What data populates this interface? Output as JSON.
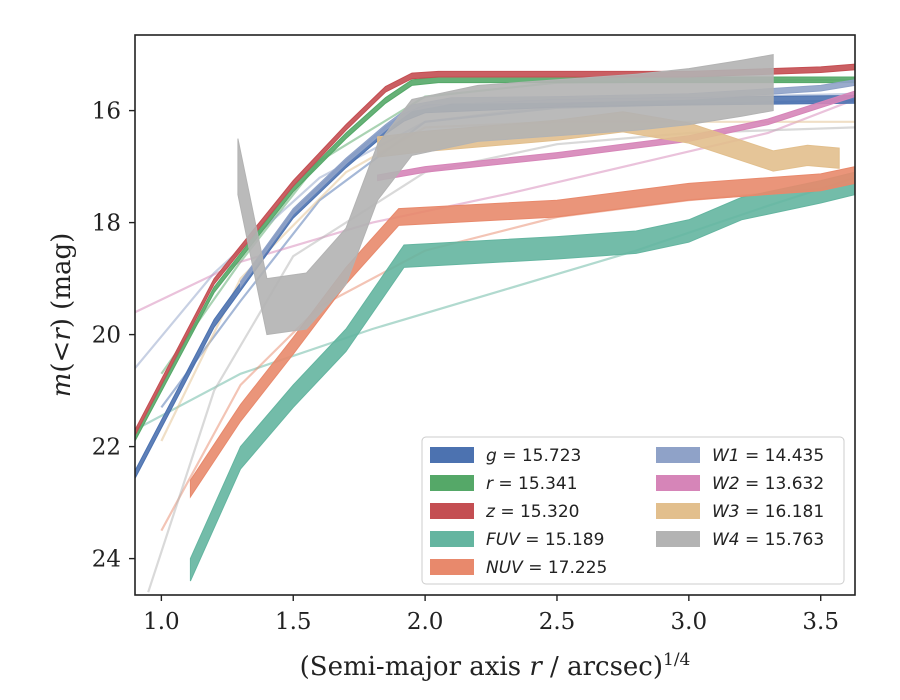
{
  "chart_data": {
    "type": "line",
    "xlabel": "(Semi-major axis r / arcsec)^{1/4}",
    "ylabel": "m(<r) (mag)",
    "xlim": [
      0.9,
      3.63
    ],
    "ylim": [
      24.65,
      14.65
    ],
    "y_inverted": true,
    "grid": false,
    "legend_placement": "lower-right",
    "xticks": [
      1.0,
      1.5,
      2.0,
      2.5,
      3.0,
      3.5
    ],
    "xtick_labels": [
      "1.0",
      "1.5",
      "2.0",
      "2.5",
      "3.0",
      "3.5"
    ],
    "yticks": [
      16,
      18,
      20,
      22,
      24
    ],
    "ytick_labels": [
      "16",
      "18",
      "20",
      "22",
      "24"
    ],
    "series": [
      {
        "name": "g",
        "legend_label": "g = 15.723",
        "color": "#4C72B0",
        "kind": "band",
        "x": [
          0.9,
          1.2,
          1.5,
          1.7,
          1.85,
          1.92,
          2.0,
          2.5,
          3.0,
          3.63
        ],
        "y": [
          22.5,
          19.8,
          17.85,
          16.95,
          16.35,
          16.12,
          15.97,
          15.87,
          15.83,
          15.8
        ],
        "band_halfwidth": 0.07
      },
      {
        "name": "r",
        "legend_label": "r = 15.341",
        "color": "#55A868",
        "kind": "band",
        "x": [
          0.9,
          1.2,
          1.5,
          1.7,
          1.85,
          1.95,
          2.05,
          3.63
        ],
        "y": [
          21.85,
          19.2,
          17.4,
          16.45,
          15.82,
          15.5,
          15.45,
          15.45
        ],
        "band_halfwidth": 0.05
      },
      {
        "name": "z",
        "legend_label": "z = 15.320",
        "color": "#C44E52",
        "kind": "band",
        "x": [
          0.9,
          1.2,
          1.5,
          1.7,
          1.85,
          1.95,
          2.05,
          3.0,
          3.5,
          3.63
        ],
        "y": [
          21.75,
          19.05,
          17.3,
          16.3,
          15.62,
          15.38,
          15.35,
          15.35,
          15.27,
          15.22
        ],
        "band_halfwidth": 0.05
      },
      {
        "name": "FUV",
        "legend_label": "FUV = 15.189",
        "color": "#64B5A0",
        "kind": "band",
        "x": [
          1.11,
          1.3,
          1.5,
          1.7,
          1.92,
          2.5,
          2.8,
          3.0,
          3.2,
          3.5,
          3.63
        ],
        "y": [
          24.2,
          22.2,
          21.1,
          20.1,
          18.6,
          18.45,
          18.35,
          18.15,
          17.75,
          17.45,
          17.3
        ],
        "band_halfwidth": 0.2
      },
      {
        "name": "NUV",
        "legend_label": "NUV = 17.225",
        "color": "#E8896C",
        "kind": "band",
        "x": [
          1.11,
          1.3,
          1.5,
          1.7,
          1.9,
          2.5,
          3.0,
          3.5,
          3.63
        ],
        "y": [
          22.75,
          21.4,
          20.2,
          18.95,
          17.9,
          17.75,
          17.45,
          17.28,
          17.15
        ],
        "band_halfwidth": 0.15
      },
      {
        "name": "W1",
        "legend_label": "W1 = 14.435",
        "color": "#8FA2C8",
        "kind": "band",
        "x": [
          1.3,
          1.5,
          1.7,
          1.85,
          1.95,
          2.1,
          2.5,
          3.0,
          3.5,
          3.63
        ],
        "y": [
          19.1,
          17.8,
          16.9,
          16.3,
          15.95,
          15.82,
          15.8,
          15.75,
          15.6,
          15.5
        ],
        "band_halfwidth": 0.05
      },
      {
        "name": "W2",
        "legend_label": "W2 = 13.632",
        "color": "#D685B8",
        "kind": "band",
        "x": [
          1.82,
          2.0,
          2.5,
          3.0,
          3.3,
          3.63
        ],
        "y": [
          17.2,
          17.05,
          16.8,
          16.5,
          16.2,
          15.7
        ],
        "band_halfwidth": 0.05
      },
      {
        "name": "W3",
        "legend_label": "W3 = 16.181",
        "color": "#E2BF8D",
        "kind": "band",
        "x": [
          1.82,
          2.0,
          2.5,
          2.75,
          3.0,
          3.32,
          3.45,
          3.57
        ],
        "y": [
          16.65,
          16.55,
          16.35,
          16.2,
          16.4,
          16.9,
          16.8,
          16.85
        ],
        "band_halfwidth": 0.18
      },
      {
        "name": "W4",
        "legend_label": "W4 = 15.763",
        "color": "#B3B3B3",
        "kind": "band",
        "x": [
          1.29,
          1.4,
          1.55,
          1.7,
          1.82,
          1.95,
          2.2,
          2.5,
          2.8,
          3.0,
          3.2,
          3.32
        ],
        "y": [
          17.0,
          19.5,
          19.4,
          18.6,
          17.1,
          16.3,
          16.05,
          15.95,
          15.85,
          15.75,
          15.6,
          15.5
        ],
        "band_halfwidth": 0.5
      }
    ],
    "model_curves": [
      {
        "name": "g",
        "color": "#4C72B0",
        "x": [
          1.0,
          1.3,
          1.6,
          2.0,
          2.5,
          3.0,
          3.5,
          3.63
        ],
        "y": [
          21.3,
          19.4,
          17.6,
          16.2,
          15.95,
          15.88,
          15.83,
          15.82
        ]
      },
      {
        "name": "r",
        "color": "#55A868",
        "x": [
          1.0,
          1.3,
          1.6,
          2.0,
          2.5,
          3.63
        ],
        "y": [
          20.7,
          18.7,
          16.9,
          15.75,
          15.5,
          15.45
        ]
      },
      {
        "name": "FUV",
        "color": "#64B5A0",
        "x": [
          0.9,
          1.3,
          1.8,
          2.3,
          2.8,
          3.3,
          3.63
        ],
        "y": [
          21.7,
          20.7,
          19.9,
          19.2,
          18.5,
          17.7,
          17.2
        ]
      },
      {
        "name": "NUV",
        "color": "#E8896C",
        "x": [
          1.0,
          1.3,
          1.6,
          2.0,
          2.5,
          3.0,
          3.5,
          3.63
        ],
        "y": [
          23.5,
          20.9,
          19.5,
          18.5,
          17.9,
          17.6,
          17.4,
          17.3
        ]
      },
      {
        "name": "W1",
        "color": "#8FA2C8",
        "x": [
          0.9,
          1.2,
          1.6,
          2.0,
          2.6,
          3.2,
          3.63
        ],
        "y": [
          20.6,
          18.9,
          17.2,
          16.2,
          15.85,
          15.75,
          15.7
        ]
      },
      {
        "name": "W2",
        "color": "#D685B8",
        "x": [
          0.9,
          1.3,
          1.8,
          2.3,
          2.8,
          3.3,
          3.63
        ],
        "y": [
          19.6,
          18.7,
          18.0,
          17.5,
          16.95,
          16.4,
          15.8
        ]
      },
      {
        "name": "W3",
        "color": "#E2BF8D",
        "x": [
          1.0,
          1.3,
          1.7,
          2.0,
          2.5,
          3.0,
          3.63
        ],
        "y": [
          21.9,
          19.0,
          17.1,
          16.3,
          16.2,
          16.2,
          16.2
        ]
      },
      {
        "name": "W4",
        "color": "#B3B3B3",
        "x": [
          0.95,
          1.2,
          1.5,
          2.0,
          2.5,
          3.0,
          3.63
        ],
        "y": [
          24.6,
          21.0,
          18.6,
          17.1,
          16.6,
          16.4,
          16.3
        ]
      }
    ]
  }
}
